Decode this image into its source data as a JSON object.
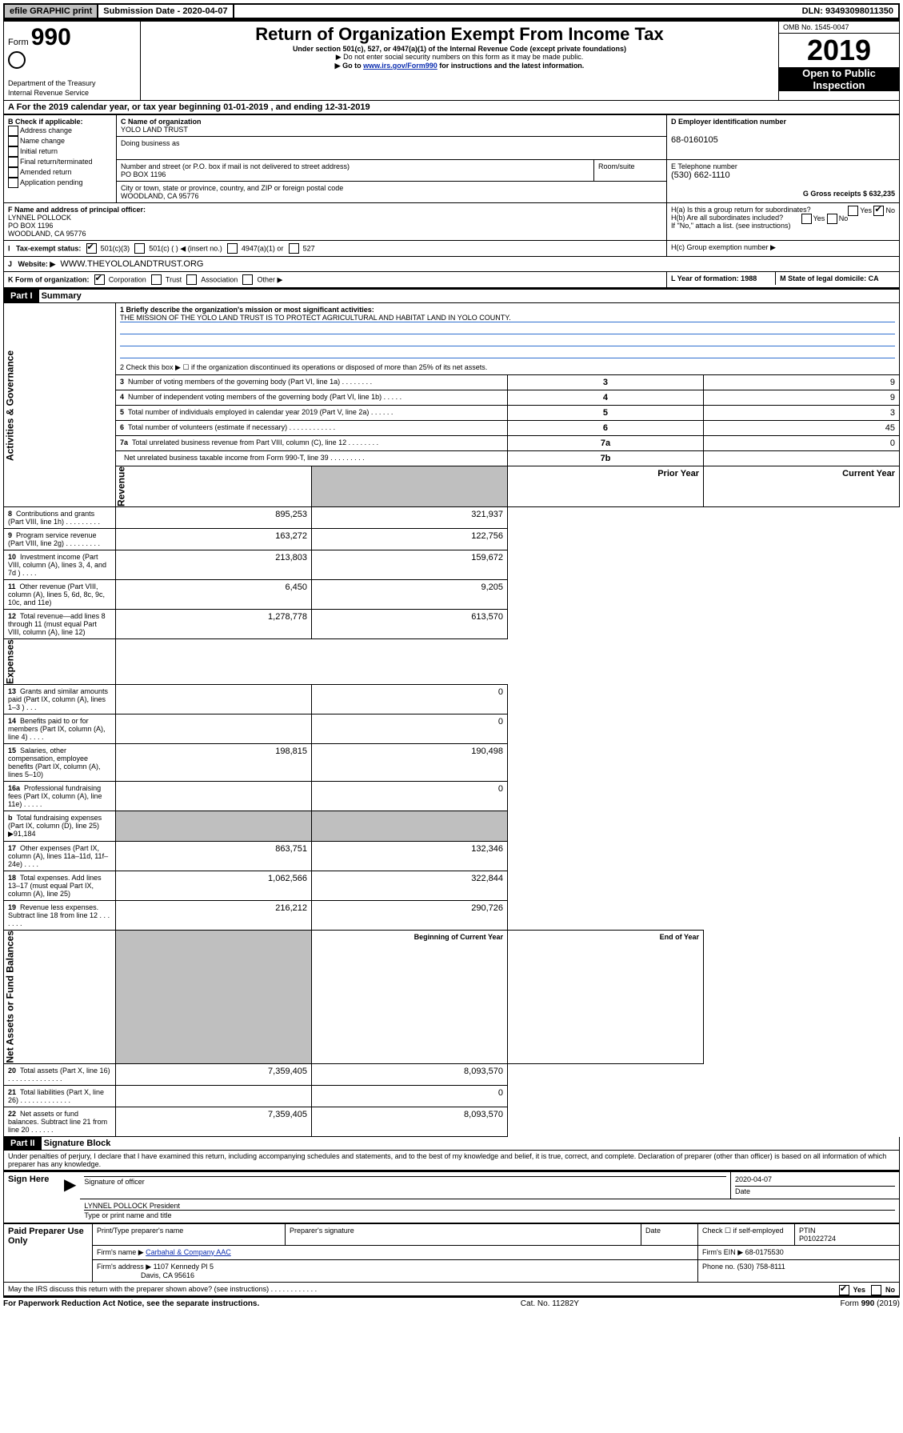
{
  "topbar": {
    "efile": "efile GRAPHIC print",
    "submission_label": "Submission Date - 2020-04-07",
    "dln": "DLN: 93493098011350"
  },
  "header": {
    "form_label": "Form",
    "form_num": "990",
    "dept": "Department of the Treasury\nInternal Revenue Service",
    "title": "Return of Organization Exempt From Income Tax",
    "subtitle": "Under section 501(c), 527, or 4947(a)(1) of the Internal Revenue Code (except private foundations)",
    "note1": "▶ Do not enter social security numbers on this form as it may be made public.",
    "note2_pre": "▶ Go to ",
    "note2_link": "www.irs.gov/Form990",
    "note2_post": " for instructions and the latest information.",
    "omb": "OMB No. 1545-0047",
    "year": "2019",
    "inspection": "Open to Public Inspection"
  },
  "lineA": "A For the 2019 calendar year, or tax year beginning 01-01-2019   , and ending 12-31-2019",
  "boxB": {
    "label": "B Check if applicable:",
    "opts": [
      "Address change",
      "Name change",
      "Initial return",
      "Final return/terminated",
      "Amended return",
      "Application pending"
    ]
  },
  "boxC": {
    "name_label": "C Name of organization",
    "name": "YOLO LAND TRUST",
    "dba_label": "Doing business as",
    "addr_label": "Number and street (or P.O. box if mail is not delivered to street address)",
    "room_label": "Room/suite",
    "addr": "PO BOX 1196",
    "city_label": "City or town, state or province, country, and ZIP or foreign postal code",
    "city": "WOODLAND, CA  95776"
  },
  "boxD": {
    "label": "D Employer identification number",
    "val": "68-0160105"
  },
  "boxE": {
    "label": "E Telephone number",
    "val": "(530) 662-1110"
  },
  "boxG": {
    "label": "G Gross receipts $ 632,235"
  },
  "boxF": {
    "label": "F Name and address of principal officer:",
    "name": "LYNNEL POLLOCK",
    "addr": "PO BOX 1196",
    "city": "WOODLAND, CA  95776"
  },
  "boxH": {
    "a": "H(a)  Is this a group return for subordinates?",
    "b": "H(b)  Are all subordinates included?",
    "b_note": "If \"No,\" attach a list. (see instructions)",
    "c": "H(c)  Group exemption number ▶"
  },
  "boxI": {
    "label": "Tax-exempt status:",
    "o1": "501(c)(3)",
    "o2": "501(c) (   ) ◀ (insert no.)",
    "o3": "4947(a)(1) or",
    "o4": "527"
  },
  "boxJ": {
    "label": "Website: ▶",
    "val": "WWW.THEYOLOLANDTRUST.ORG"
  },
  "boxK": {
    "label": "K Form of organization:",
    "o1": "Corporation",
    "o2": "Trust",
    "o3": "Association",
    "o4": "Other ▶"
  },
  "boxL": {
    "label": "L Year of formation: 1988"
  },
  "boxM": {
    "label": "M State of legal domicile: CA"
  },
  "part1": {
    "hdr": "Part I",
    "title": "Summary",
    "l1_label": "1   Briefly describe the organization's mission or most significant activities:",
    "l1_text": "THE MISSION OF THE YOLO LAND TRUST IS TO PROTECT AGRICULTURAL AND HABITAT LAND IN YOLO COUNTY.",
    "l2": "2   Check this box ▶ ☐  if the organization discontinued its operations or disposed of more than 25% of its net assets.",
    "rows_gov": [
      {
        "n": "3",
        "t": "Number of voting members of the governing body (Part VI, line 1a)   .    .    .    .    .    .    .    .",
        "box": "3",
        "v": "9"
      },
      {
        "n": "4",
        "t": "Number of independent voting members of the governing body (Part VI, line 1b)   .    .    .    .    .",
        "box": "4",
        "v": "9"
      },
      {
        "n": "5",
        "t": "Total number of individuals employed in calendar year 2019 (Part V, line 2a)   .    .    .    .    .    .",
        "box": "5",
        "v": "3"
      },
      {
        "n": "6",
        "t": "Total number of volunteers (estimate if necessary)   .    .    .    .    .    .    .    .    .    .    .    .",
        "box": "6",
        "v": "45"
      },
      {
        "n": "7a",
        "t": "Total unrelated business revenue from Part VIII, column (C), line 12   .    .    .    .    .    .    .    .",
        "box": "7a",
        "v": "0"
      },
      {
        "n": "",
        "t": "Net unrelated business taxable income from Form 990-T, line 39   .    .    .    .    .    .    .    .    .",
        "box": "7b",
        "v": ""
      }
    ],
    "col_prior": "Prior Year",
    "col_current": "Current Year",
    "rows_rev": [
      {
        "n": "8",
        "t": "Contributions and grants (Part VIII, line 1h)   .    .    .    .    .    .    .    .    .",
        "p": "895,253",
        "c": "321,937"
      },
      {
        "n": "9",
        "t": "Program service revenue (Part VIII, line 2g)   .    .    .    .    .    .    .    .    .",
        "p": "163,272",
        "c": "122,756"
      },
      {
        "n": "10",
        "t": "Investment income (Part VIII, column (A), lines 3, 4, and 7d )   .    .    .    .",
        "p": "213,803",
        "c": "159,672"
      },
      {
        "n": "11",
        "t": "Other revenue (Part VIII, column (A), lines 5, 6d, 8c, 9c, 10c, and 11e)",
        "p": "6,450",
        "c": "9,205"
      },
      {
        "n": "12",
        "t": "Total revenue—add lines 8 through 11 (must equal Part VIII, column (A), line 12)",
        "p": "1,278,778",
        "c": "613,570"
      }
    ],
    "rows_exp": [
      {
        "n": "13",
        "t": "Grants and similar amounts paid (Part IX, column (A), lines 1–3 )   .    .    .",
        "p": "",
        "c": "0"
      },
      {
        "n": "14",
        "t": "Benefits paid to or for members (Part IX, column (A), line 4)   .    .    .    .",
        "p": "",
        "c": "0"
      },
      {
        "n": "15",
        "t": "Salaries, other compensation, employee benefits (Part IX, column (A), lines 5–10)",
        "p": "198,815",
        "c": "190,498"
      },
      {
        "n": "16a",
        "t": "Professional fundraising fees (Part IX, column (A), line 11e)   .    .    .    .    .",
        "p": "",
        "c": "0"
      },
      {
        "n": "b",
        "t": "Total fundraising expenses (Part IX, column (D), line 25) ▶91,184",
        "p": null,
        "c": null
      },
      {
        "n": "17",
        "t": "Other expenses (Part IX, column (A), lines 11a–11d, 11f–24e)   .    .    .    .",
        "p": "863,751",
        "c": "132,346"
      },
      {
        "n": "18",
        "t": "Total expenses. Add lines 13–17 (must equal Part IX, column (A), line 25)",
        "p": "1,062,566",
        "c": "322,844"
      },
      {
        "n": "19",
        "t": "Revenue less expenses. Subtract line 18 from line 12   .    .    .    .    .    .    .",
        "p": "216,212",
        "c": "290,726"
      }
    ],
    "col_begin": "Beginning of Current Year",
    "col_end": "End of Year",
    "rows_net": [
      {
        "n": "20",
        "t": "Total assets (Part X, line 16)   .    .    .    .    .    .    .    .    .    .    .    .    .    .",
        "p": "7,359,405",
        "c": "8,093,570"
      },
      {
        "n": "21",
        "t": "Total liabilities (Part X, line 26)   .    .    .    .    .    .    .    .    .    .    .    .    .",
        "p": "",
        "c": "0"
      },
      {
        "n": "22",
        "t": "Net assets or fund balances. Subtract line 21 from line 20   .    .    .    .    .    .",
        "p": "7,359,405",
        "c": "8,093,570"
      }
    ],
    "side_gov": "Activities & Governance",
    "side_rev": "Revenue",
    "side_exp": "Expenses",
    "side_net": "Net Assets or Fund Balances"
  },
  "part2": {
    "hdr": "Part II",
    "title": "Signature Block",
    "perjury": "Under penalties of perjury, I declare that I have examined this return, including accompanying schedules and statements, and to the best of my knowledge and belief, it is true, correct, and complete. Declaration of preparer (other than officer) is based on all information of which preparer has any knowledge.",
    "sign_here": "Sign Here",
    "sig_officer": "Signature of officer",
    "sig_date_label": "Date",
    "sig_date": "2020-04-07",
    "typed": "LYNNEL POLLOCK  President",
    "typed_label": "Type or print name and title",
    "paid": "Paid Preparer Use Only",
    "p_name_label": "Print/Type preparer's name",
    "p_sig_label": "Preparer's signature",
    "p_date_label": "Date",
    "p_check": "Check ☐ if self-employed",
    "ptin_label": "PTIN",
    "ptin": "P01022724",
    "firm_name_label": "Firm's name    ▶",
    "firm_name": "Carbahal & Company AAC",
    "firm_ein_label": "Firm's EIN ▶",
    "firm_ein": "68-0175530",
    "firm_addr_label": "Firm's address ▶",
    "firm_addr": "1107 Kennedy Pl 5",
    "firm_city": "Davis, CA  95616",
    "firm_phone_label": "Phone no.",
    "firm_phone": "(530) 758-8111",
    "discuss": "May the IRS discuss this return with the preparer shown above? (see instructions)   .    .    .    .    .    .    .    .    .    .    .    .",
    "yes": "Yes",
    "no": "No"
  },
  "footer": {
    "left": "For Paperwork Reduction Act Notice, see the separate instructions.",
    "mid": "Cat. No. 11282Y",
    "right": "Form 990 (2019)"
  },
  "colors": {
    "link": "#0b2db0",
    "shade": "#bfbfbf",
    "rule": "#3070d0"
  }
}
